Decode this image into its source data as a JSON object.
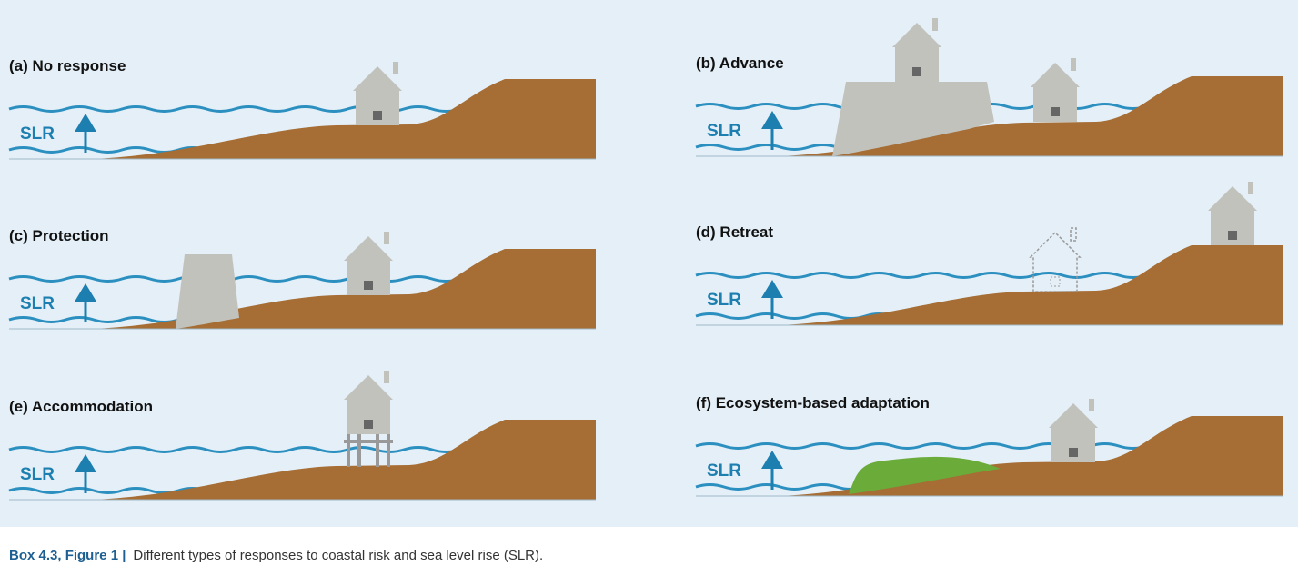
{
  "panels": [
    {
      "title": "(a) No response",
      "label": "SLR"
    },
    {
      "title": "(b) Advance",
      "label": "SLR"
    },
    {
      "title": "(c) Protection",
      "label": "SLR"
    },
    {
      "title": "(d) Retreat",
      "label": "SLR"
    },
    {
      "title": "(e) Accommodation",
      "label": "SLR"
    },
    {
      "title": "(f) Ecosystem-based adaptation",
      "label": "SLR"
    }
  ],
  "caption": {
    "label": "Box 4.3, Figure 1 |",
    "text": "Different types of responses to coastal risk and sea level rise (SLR)."
  }
}
